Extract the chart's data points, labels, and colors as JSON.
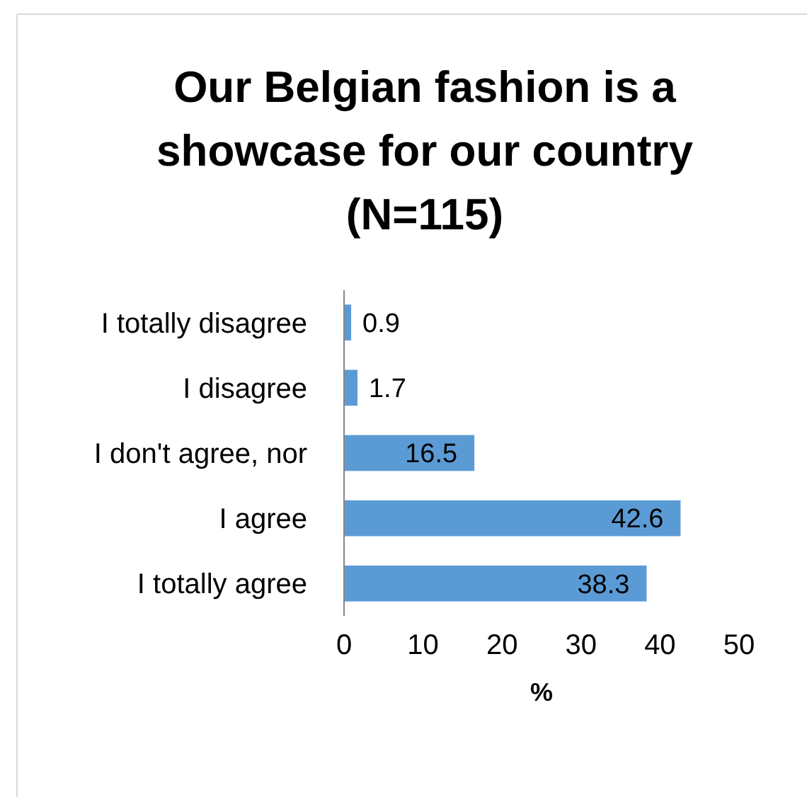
{
  "chart_data": {
    "type": "bar",
    "orientation": "horizontal",
    "title": "Our Belgian fashion is a showcase for our country (N=115)",
    "xlabel": "%",
    "categories": [
      "I totally disagree",
      "I disagree",
      "I don't agree, nor",
      "I agree",
      "I totally agree"
    ],
    "values": [
      0.9,
      1.7,
      16.5,
      42.6,
      38.3
    ],
    "color": "#5b9bd5",
    "xlim": [
      0,
      50
    ],
    "xticks": [
      0,
      10,
      20,
      30,
      40,
      50
    ],
    "data_labels": true,
    "grid": false
  }
}
